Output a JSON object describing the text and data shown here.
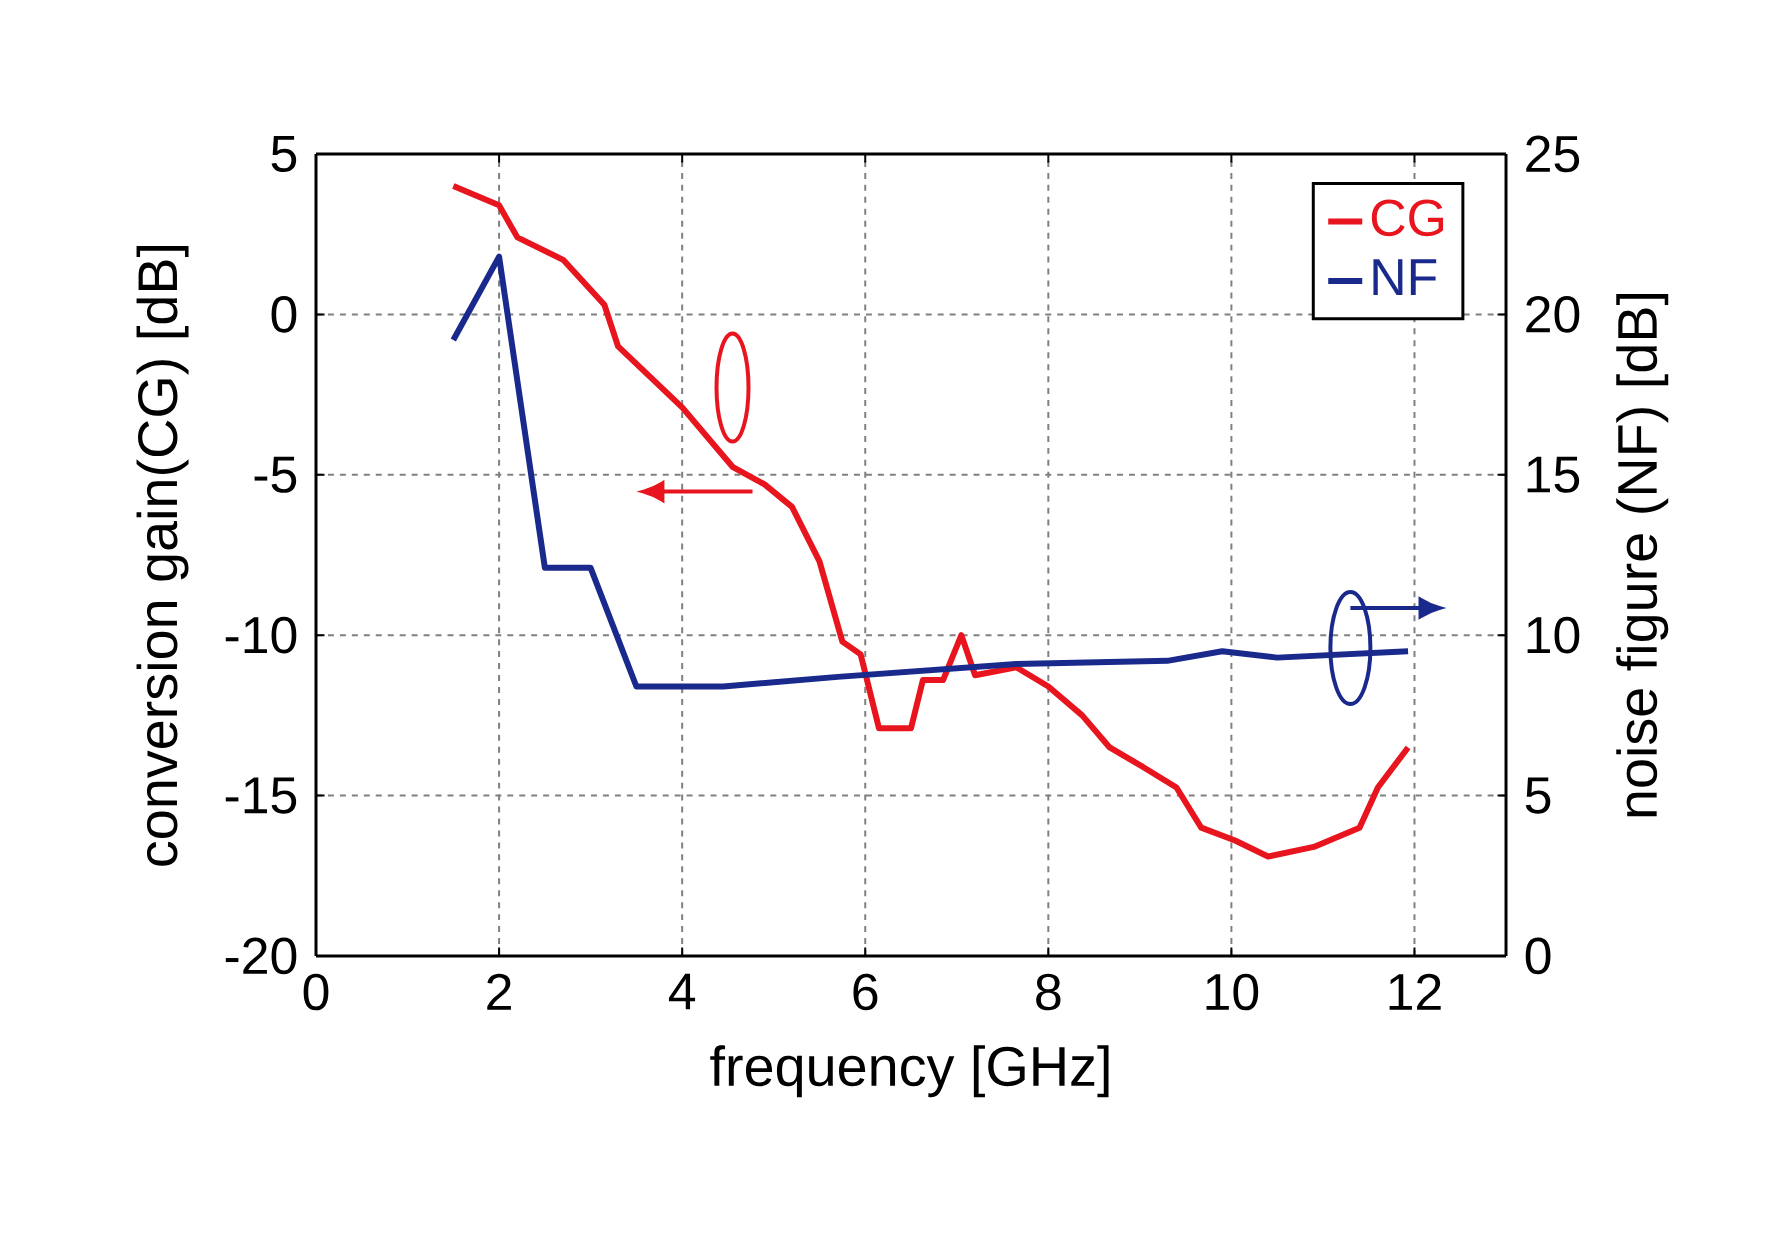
{
  "chart_data": {
    "type": "line",
    "xlabel": "frequency [GHz]",
    "ylabel": "conversion gain(CG) [dB]",
    "y2label": "noise figure (NF) [dB]",
    "xlim": [
      0,
      13
    ],
    "xticks": [
      0,
      2,
      4,
      6,
      8,
      10,
      12
    ],
    "ylim": [
      -20,
      5
    ],
    "yticks": [
      -20,
      -15,
      -10,
      -5,
      0,
      5
    ],
    "y2lim": [
      0,
      25
    ],
    "y2ticks": [
      0,
      5,
      10,
      15,
      20,
      25
    ],
    "grid": true,
    "legend": "top right",
    "line_style": "solid",
    "series": [
      {
        "name": "CG",
        "color": "#e8141e",
        "x": [
          1.5,
          2.0,
          2.2,
          2.7,
          3.15,
          3.3,
          4.0,
          4.55,
          4.9,
          5.2,
          5.5,
          5.75,
          5.95,
          6.15,
          6.5,
          6.63,
          6.85,
          7.05,
          7.2,
          7.65,
          8.0,
          8.37,
          8.67,
          9.03,
          9.4,
          9.67,
          10.04,
          10.4,
          10.9,
          11.4,
          11.6,
          11.93
        ],
        "values": [
          4.0,
          3.4,
          2.4,
          1.7,
          0.3,
          -1.0,
          -2.9,
          -4.75,
          -5.3,
          -6.0,
          -7.7,
          -10.2,
          -10.6,
          -12.9,
          -12.9,
          -11.4,
          -11.4,
          -10.0,
          -11.25,
          -11.0,
          -11.6,
          -12.5,
          -13.5,
          -14.1,
          -14.75,
          -16.0,
          -16.4,
          -16.9,
          -16.6,
          -16.0,
          -14.75,
          -13.5
        ]
      },
      {
        "name": "NF",
        "color": "#1a2a8c",
        "axis": "y2",
        "x": [
          1.5,
          2.0,
          2.5,
          3.0,
          3.5,
          4.45,
          5.7,
          7.65,
          9.3,
          9.9,
          10.5,
          11.93
        ],
        "values": [
          19.2,
          21.8,
          12.1,
          12.1,
          8.4,
          8.4,
          8.7,
          9.1,
          9.2,
          9.5,
          9.3,
          9.5
        ]
      }
    ]
  }
}
